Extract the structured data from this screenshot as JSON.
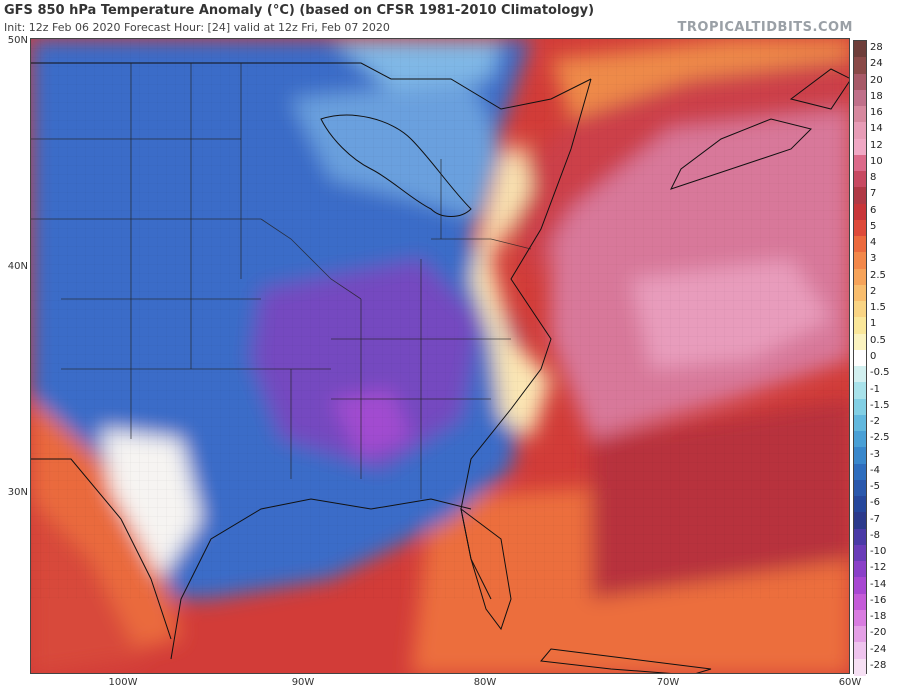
{
  "header": {
    "title": "GFS 850 hPa Temperature Anomaly (°C) (based on CFSR 1981-2010 Climatology)",
    "subtitle": "Init: 12z Feb 06 2020   Forecast Hour: [24]   valid at 12z Fri, Feb 07 2020",
    "brand": "TROPICALTIDBITS.COM"
  },
  "axes": {
    "lat_labels": [
      "50N",
      "40N",
      "30N"
    ],
    "lon_labels": [
      "100W",
      "90W",
      "80W",
      "70W",
      "60W"
    ]
  },
  "colorbar": {
    "labels": [
      "28",
      "24",
      "20",
      "18",
      "16",
      "14",
      "12",
      "10",
      "8",
      "7",
      "6",
      "5",
      "4",
      "3",
      "2.5",
      "2",
      "1.5",
      "1",
      "0.5",
      "0",
      "-0.5",
      "-1",
      "-1.5",
      "-2",
      "-2.5",
      "-3",
      "-4",
      "-5",
      "-6",
      "-7",
      "-8",
      "-10",
      "-12",
      "-14",
      "-16",
      "-18",
      "-20",
      "-24",
      "-28"
    ],
    "colors": [
      "#6e3e3a",
      "#8a4a48",
      "#a85a68",
      "#c0708a",
      "#d6889e",
      "#e79cb6",
      "#f0a8c4",
      "#dc6a8a",
      "#c84a62",
      "#b03a46",
      "#c8363a",
      "#de4a3a",
      "#ec6a3e",
      "#f3884a",
      "#f6a35a",
      "#f8bd6e",
      "#f9d484",
      "#fae79a",
      "#fbf3c0",
      "#ffffff",
      "#d2f0f0",
      "#a8e2ea",
      "#82cfe4",
      "#62b8de",
      "#4aa0d6",
      "#3a88cc",
      "#2f6ebe",
      "#2a58ac",
      "#26479c",
      "#2c3a8c",
      "#4a3aa6",
      "#6a3cb8",
      "#8a40c8",
      "#a848d2",
      "#c45cd8",
      "#d87ce0",
      "#e4a0e6",
      "#eec4ee",
      "#f6e0f4"
    ]
  },
  "map": {
    "colors": {
      "ocean_warm": "#d03a3a",
      "atlantic_pink": "#d8789a",
      "cold_core": "#7a4cc4",
      "cold_mid": "#3a6cc8",
      "cold_light": "#6ea8e0",
      "near_zero": "#ffffff"
    }
  }
}
